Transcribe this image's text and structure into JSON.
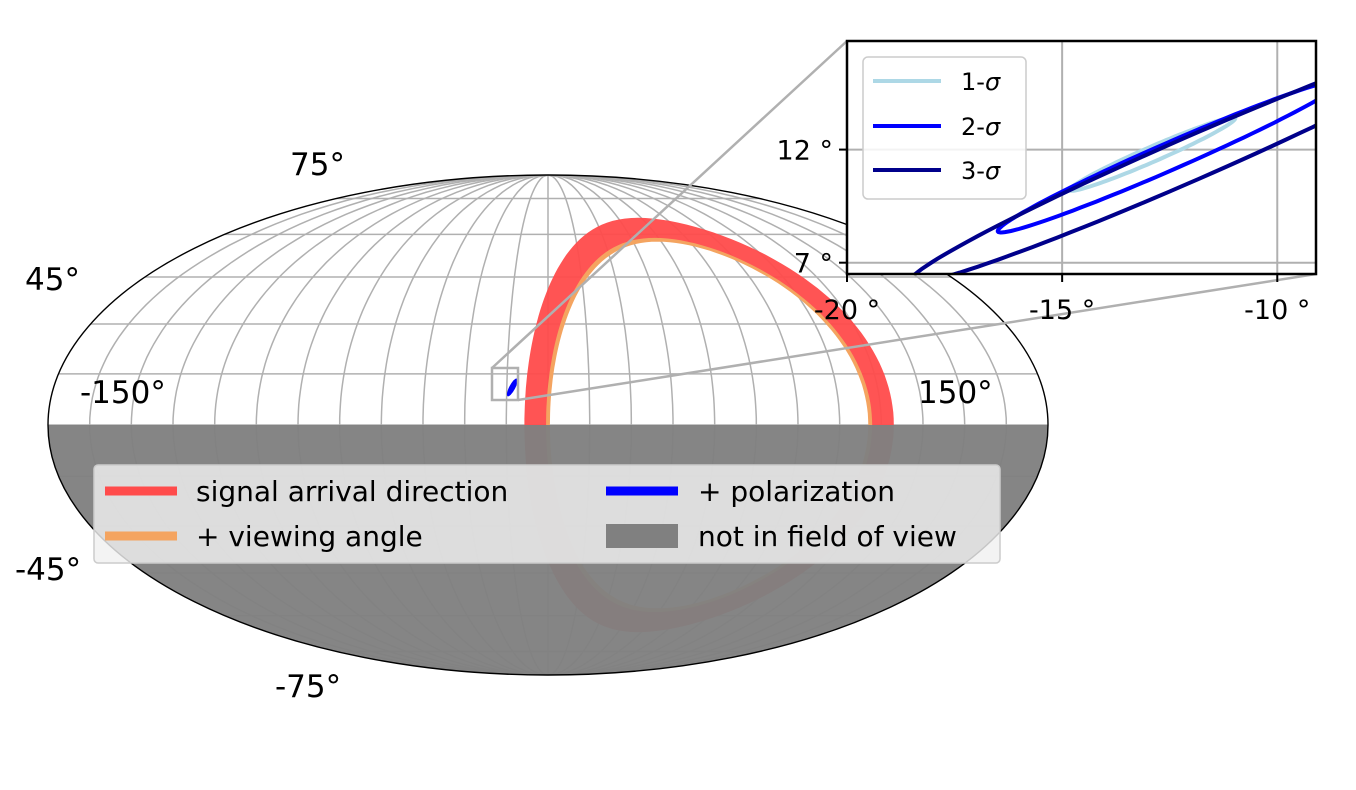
{
  "chart_data": [
    {
      "type": "sky-map",
      "projection": "mollweide",
      "lat_tick_labels": [
        "75°",
        "45°",
        "-45°",
        "-75°"
      ],
      "lon_tick_labels": [
        "-150°",
        "150°"
      ],
      "grid": true,
      "not_in_field_of_view": {
        "latitude_below_deg": 0,
        "color": "#808080"
      },
      "series": [
        {
          "name": "signal arrival direction",
          "color": "#ff4b4b",
          "shape": "ring",
          "center_lon_deg": 58,
          "center_lat_deg": 0,
          "radius_deg": 62,
          "width_deg": 9
        },
        {
          "name": "+ viewing angle",
          "color": "#f4a460",
          "shape": "ring",
          "center_lon_deg": 58,
          "center_lat_deg": 0,
          "radius_deg": 58,
          "width_deg": 1.4
        },
        {
          "name": "+ polarization",
          "color": "#0000ff",
          "shape": "ellipse",
          "center_lon_deg": -13,
          "center_lat_deg": 11
        }
      ],
      "legend": {
        "placement": "lower-center",
        "entries": [
          {
            "label": "signal arrival direction",
            "color": "#ff4b4b",
            "kind": "line"
          },
          {
            "label": "+ viewing angle",
            "color": "#f4a460",
            "kind": "line"
          },
          {
            "label": "+ polarization",
            "color": "#0000ff",
            "kind": "line"
          },
          {
            "label": "not in field of view",
            "color": "#808080",
            "kind": "patch"
          }
        ]
      }
    },
    {
      "type": "contour",
      "role": "inset-zoom",
      "xlim": [
        -20,
        -9.1
      ],
      "ylim": [
        6.5,
        16.8
      ],
      "xticks": [
        -20,
        -15,
        -10
      ],
      "yticks": [
        7,
        12
      ],
      "xtick_labels": [
        "-20 °",
        "-15 °",
        "-10 °"
      ],
      "ytick_labels": [
        "7 °",
        "12 °"
      ],
      "grid": true,
      "legend": {
        "placement": "top-left"
      },
      "series": [
        {
          "name": "1-σ",
          "color": "#add8e6",
          "center": [
            -12.9,
            11.8
          ],
          "angle_deg": 40,
          "semi_major": 2.5,
          "semi_minor": 0.28
        },
        {
          "name": "2-σ",
          "color": "#0000ff",
          "center": [
            -12.5,
            11.7
          ],
          "angle_deg": 40,
          "semi_major": 5.2,
          "semi_minor": 0.5
        },
        {
          "name": "3-σ",
          "color": "#00008b",
          "center": [
            -12.0,
            11.6
          ],
          "angle_deg": 40,
          "semi_major": 8.5,
          "semi_minor": 0.8
        }
      ]
    }
  ]
}
